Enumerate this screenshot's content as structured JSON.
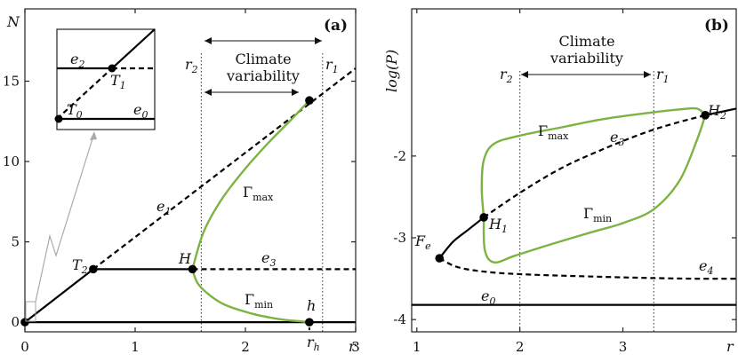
{
  "chart_data": [
    {
      "panel": "(a)",
      "type": "line",
      "ylabel": "N",
      "xlabel": "r",
      "xticks": [
        "0",
        "1",
        "2",
        "3"
      ],
      "yticks": [
        "0",
        "5",
        "10",
        "15"
      ],
      "xlim": [
        0,
        3.0
      ],
      "ylim": [
        -0.6,
        19.5
      ],
      "annotation": {
        "line1": "Climate",
        "line2": "variability"
      },
      "r1_label": "r",
      "r1_sub": "1",
      "r2_label": "r",
      "r2_sub": "2",
      "rh_label": "r",
      "rh_sub": "h",
      "labels": {
        "T2": "T",
        "T2_sub": "2",
        "H": "H",
        "e1": "e",
        "e1_sub": "1",
        "e3": "e",
        "e3_sub": "3",
        "h": "h",
        "gmax": "Γ",
        "gmax_sub": "max",
        "gmin": "Γ",
        "gmin_sub": "min"
      },
      "inset": {
        "e2": "e",
        "e2_sub": "2",
        "T1": "T",
        "T1_sub": "1",
        "T0": "T",
        "T0_sub": "0",
        "e0": "e",
        "e0_sub": "0"
      },
      "points": {
        "T2": [
          0.62,
          3.3
        ],
        "H": [
          1.52,
          3.3
        ],
        "h": [
          2.58,
          0.0
        ],
        "upper": [
          2.58,
          13.8
        ],
        "origin": [
          0,
          0
        ]
      },
      "r1": 2.7,
      "r2": 1.6,
      "series": [
        {
          "name": "e1",
          "style": "solid",
          "x": [
            0,
            0.62
          ],
          "y": [
            0,
            3.3
          ]
        },
        {
          "name": "e1",
          "style": "dashed",
          "x": [
            0.62,
            3.0
          ],
          "y": [
            3.3,
            15.8
          ]
        },
        {
          "name": "e3",
          "style": "solid",
          "x": [
            0.62,
            1.52
          ],
          "y": [
            3.3,
            3.3
          ]
        },
        {
          "name": "e3",
          "style": "dashed",
          "x": [
            1.52,
            3.0
          ],
          "y": [
            3.3,
            3.3
          ]
        },
        {
          "name": "e0",
          "style": "solid",
          "x": [
            0,
            3.0
          ],
          "y": [
            0,
            0
          ]
        },
        {
          "name": "Gamma_max",
          "style": "green",
          "x": [
            1.52,
            1.62,
            1.78,
            1.98,
            2.2,
            2.4,
            2.58
          ],
          "y": [
            3.3,
            5.6,
            7.6,
            9.4,
            11.1,
            12.5,
            13.8
          ]
        },
        {
          "name": "Gamma_min",
          "style": "green",
          "x": [
            1.52,
            1.58,
            1.78,
            2.05,
            2.3,
            2.5,
            2.58
          ],
          "y": [
            3.3,
            2.3,
            1.2,
            0.55,
            0.2,
            0.05,
            0.0
          ]
        }
      ]
    },
    {
      "panel": "(b)",
      "type": "line",
      "ylabel": "log(P)",
      "xlabel": "r",
      "xticks": [
        "1",
        "2",
        "3"
      ],
      "yticks": [
        "-2",
        "-3",
        "-4"
      ],
      "xlim": [
        0.95,
        4.1
      ],
      "ylim": [
        -4.15,
        -0.2
      ],
      "annotation": {
        "line1": "Climate",
        "line2": "variability"
      },
      "r1_label": "r",
      "r1_sub": "1",
      "r2_label": "r",
      "r2_sub": "2",
      "r1": 3.3,
      "r2": 2.0,
      "labels": {
        "Fe": "F",
        "Fe_sub": "e",
        "H1": "H",
        "H1_sub": "1",
        "H2": "H",
        "H2_sub": "2",
        "e3": "e",
        "e3_sub": "3",
        "e4": "e",
        "e4_sub": "4",
        "e0": "e",
        "e0_sub": "0",
        "gmax": "Γ",
        "gmax_sub": "max",
        "gmin": "Γ",
        "gmin_sub": "min"
      },
      "points": {
        "Fe": [
          1.22,
          -3.25
        ],
        "H1": [
          1.65,
          -2.75
        ],
        "H2": [
          3.8,
          -1.5
        ]
      },
      "series": [
        {
          "name": "stable_branch",
          "style": "solid",
          "x": [
            1.22,
            1.35,
            1.5,
            1.65
          ],
          "y": [
            -3.25,
            -3.05,
            -2.9,
            -2.75
          ]
        },
        {
          "name": "e3",
          "style": "dashed",
          "x": [
            1.65,
            2.0,
            2.4,
            2.8,
            3.2,
            3.5,
            3.8
          ],
          "y": [
            -2.75,
            -2.45,
            -2.15,
            -1.92,
            -1.72,
            -1.6,
            -1.5
          ]
        },
        {
          "name": "upper_stable",
          "style": "solid",
          "x": [
            3.8,
            4.1
          ],
          "y": [
            -1.5,
            -1.42
          ]
        },
        {
          "name": "e4",
          "style": "dashed",
          "x": [
            1.22,
            1.4,
            1.7,
            2.1,
            2.6,
            3.2,
            3.7,
            4.1
          ],
          "y": [
            -3.25,
            -3.36,
            -3.42,
            -3.45,
            -3.47,
            -3.49,
            -3.5,
            -3.5
          ]
        },
        {
          "name": "e0",
          "style": "solid",
          "x": [
            0.95,
            4.1
          ],
          "y": [
            -3.82,
            -3.82
          ]
        },
        {
          "name": "Gamma_max",
          "style": "green",
          "x": [
            1.65,
            1.63,
            1.65,
            1.75,
            2.0,
            2.4,
            2.8,
            3.2,
            3.55,
            3.72,
            3.8
          ],
          "y": [
            -2.75,
            -2.4,
            -2.05,
            -1.85,
            -1.75,
            -1.65,
            -1.55,
            -1.48,
            -1.43,
            -1.42,
            -1.5
          ]
        },
        {
          "name": "Gamma_min",
          "style": "green",
          "x": [
            1.65,
            1.66,
            1.75,
            1.95,
            2.3,
            2.7,
            3.0,
            3.3,
            3.55,
            3.72,
            3.8
          ],
          "y": [
            -2.75,
            -3.15,
            -3.3,
            -3.22,
            -3.08,
            -2.93,
            -2.82,
            -2.65,
            -2.3,
            -1.8,
            -1.5
          ]
        }
      ]
    }
  ]
}
